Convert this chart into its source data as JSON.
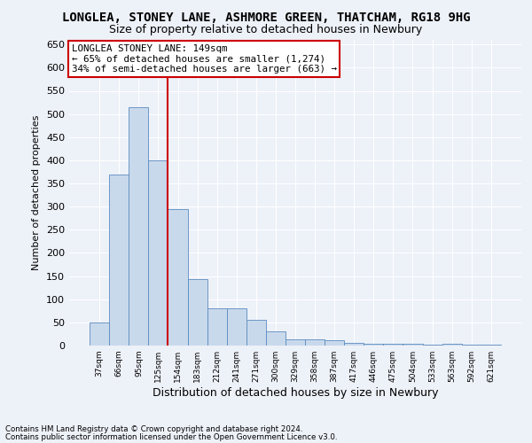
{
  "title": "LONGLEA, STONEY LANE, ASHMORE GREEN, THATCHAM, RG18 9HG",
  "subtitle": "Size of property relative to detached houses in Newbury",
  "xlabel": "Distribution of detached houses by size in Newbury",
  "ylabel": "Number of detached properties",
  "footnote1": "Contains HM Land Registry data © Crown copyright and database right 2024.",
  "footnote2": "Contains public sector information licensed under the Open Government Licence v3.0.",
  "annotation_line1": "LONGLEA STONEY LANE: 149sqm",
  "annotation_line2": "← 65% of detached houses are smaller (1,274)",
  "annotation_line3": "34% of semi-detached houses are larger (663) →",
  "bar_color": "#c9d9ec",
  "bar_edge_color": "#5b8bbf",
  "vline_color": "#cc0000",
  "vline_index": 4,
  "categories": [
    "37sqm",
    "66sqm",
    "95sqm",
    "125sqm",
    "154sqm",
    "183sqm",
    "212sqm",
    "241sqm",
    "271sqm",
    "300sqm",
    "329sqm",
    "358sqm",
    "387sqm",
    "417sqm",
    "446sqm",
    "475sqm",
    "504sqm",
    "533sqm",
    "563sqm",
    "592sqm",
    "621sqm"
  ],
  "values": [
    50,
    370,
    515,
    400,
    295,
    143,
    80,
    80,
    55,
    30,
    13,
    13,
    12,
    5,
    3,
    3,
    3,
    1,
    3,
    1,
    2
  ],
  "ylim": [
    0,
    660
  ],
  "yticks": [
    0,
    50,
    100,
    150,
    200,
    250,
    300,
    350,
    400,
    450,
    500,
    550,
    600,
    650
  ],
  "background_color": "#edf1f8",
  "plot_bg_color": "#edf1f8",
  "grid_color": "#ffffff",
  "title_fontsize": 10,
  "subtitle_fontsize": 9,
  "annotation_fontsize": 7.8,
  "ylabel_fontsize": 8,
  "xlabel_fontsize": 9,
  "xtick_fontsize": 6.5,
  "ytick_fontsize": 8
}
